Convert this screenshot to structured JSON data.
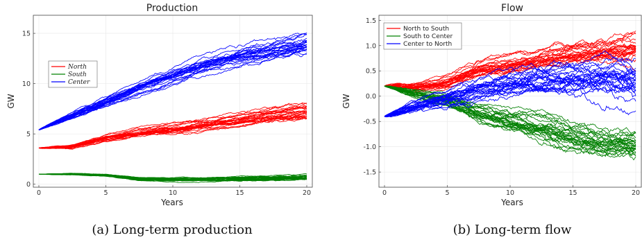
{
  "captions": {
    "a": "(a) Long-term production",
    "b": "(b) Long-term flow"
  },
  "chart_data": [
    {
      "type": "line",
      "title": "Production",
      "xlabel": "Years",
      "ylabel": "GW",
      "xlim": [
        0,
        20
      ],
      "ylim": [
        -0.3,
        16.8
      ],
      "xticks": [
        "0",
        "5",
        "10",
        "15",
        "20"
      ],
      "yticks": [
        "0",
        "5",
        "10",
        "15"
      ],
      "grid": true,
      "legend_position": "left, upper-middle",
      "legend_style": "italic",
      "series": [
        {
          "name": "North",
          "color": "#ff0000",
          "x": [
            0,
            2.5,
            5,
            7.5,
            10,
            12.5,
            15,
            17.5,
            20
          ],
          "y": [
            3.6,
            3.7,
            4.6,
            5.1,
            5.4,
            5.9,
            6.3,
            6.8,
            7.2
          ],
          "spread": 0.9
        },
        {
          "name": "South",
          "color": "#008000",
          "x": [
            0,
            2.5,
            5,
            7.5,
            10,
            12.5,
            15,
            17.5,
            20
          ],
          "y": [
            1.0,
            1.0,
            0.9,
            0.5,
            0.45,
            0.45,
            0.5,
            0.6,
            0.65
          ],
          "spread": 0.35
        },
        {
          "name": "Center",
          "color": "#0000ff",
          "x": [
            0,
            2.5,
            5,
            7.5,
            10,
            12.5,
            15,
            17.5,
            20
          ],
          "y": [
            5.4,
            6.8,
            8.1,
            9.5,
            10.7,
            11.8,
            12.6,
            13.2,
            13.8
          ],
          "spread": 1.2
        }
      ]
    },
    {
      "type": "line",
      "title": "Flow",
      "xlabel": "Years",
      "ylabel": "GW",
      "xlim": [
        0,
        20
      ],
      "ylim": [
        -1.8,
        1.6
      ],
      "xticks": [
        "0",
        "5",
        "10",
        "15",
        "20"
      ],
      "yticks": [
        "-1.5",
        "-1.0",
        "-0.5",
        "0.0",
        "0.5",
        "1.0",
        "1.5"
      ],
      "grid": true,
      "legend_position": "top-left",
      "series": [
        {
          "name": "North to South",
          "color": "#ff0000",
          "x": [
            0,
            2.5,
            5,
            7.5,
            10,
            12.5,
            15,
            17.5,
            20
          ],
          "y": [
            0.2,
            0.17,
            0.25,
            0.5,
            0.6,
            0.7,
            0.8,
            0.85,
            0.9
          ],
          "spread": 0.35
        },
        {
          "name": "South to Center",
          "color": "#008000",
          "x": [
            0,
            2.5,
            5,
            7.5,
            10,
            12.5,
            15,
            17.5,
            20
          ],
          "y": [
            0.2,
            0.05,
            -0.1,
            -0.35,
            -0.5,
            -0.65,
            -0.8,
            -0.95,
            -1.0
          ],
          "spread": 0.4
        },
        {
          "name": "Center to North",
          "color": "#0000ff",
          "x": [
            0,
            2.5,
            5,
            7.5,
            10,
            12.5,
            15,
            17.5,
            20
          ],
          "y": [
            -0.4,
            -0.2,
            -0.05,
            0.15,
            0.25,
            0.3,
            0.35,
            0.35,
            0.3
          ],
          "spread": 0.5
        }
      ]
    }
  ]
}
